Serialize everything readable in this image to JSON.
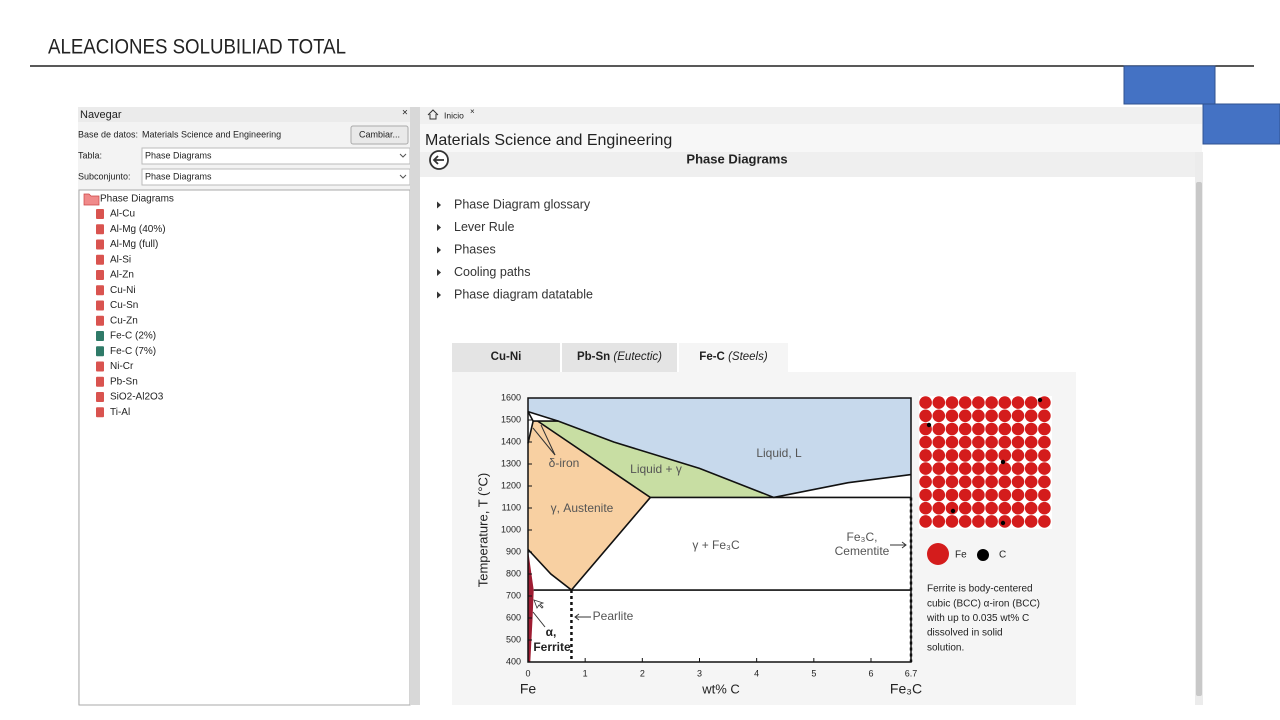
{
  "header": {
    "title": "ALEACIONES SOLUBILIAD TOTAL"
  },
  "navigator": {
    "title": "Navegar",
    "close": "×",
    "database_label": "Base de datos:",
    "database_value": "Materials Science and Engineering",
    "change_button": "Cambiar...",
    "table_label": "Tabla:",
    "table_value": "Phase Diagrams",
    "subset_label": "Subconjunto:",
    "subset_value": "Phase Diagrams",
    "tree": {
      "root": "Phase Diagrams",
      "items": [
        {
          "label": "Al-Cu",
          "icon": "#d9534f"
        },
        {
          "label": "Al-Mg (40%)",
          "icon": "#d9534f"
        },
        {
          "label": "Al-Mg (full)",
          "icon": "#d9534f"
        },
        {
          "label": "Al-Si",
          "icon": "#d9534f"
        },
        {
          "label": "Al-Zn",
          "icon": "#d9534f"
        },
        {
          "label": "Cu-Ni",
          "icon": "#d9534f"
        },
        {
          "label": "Cu-Sn",
          "icon": "#d9534f"
        },
        {
          "label": "Cu-Zn",
          "icon": "#d9534f"
        },
        {
          "label": "Fe-C (2%)",
          "icon": "#2f7a68"
        },
        {
          "label": "Fe-C (7%)",
          "icon": "#2f7a68"
        },
        {
          "label": "Ni-Cr",
          "icon": "#d9534f"
        },
        {
          "label": "Pb-Sn",
          "icon": "#d9534f"
        },
        {
          "label": "SiO2-Al2O3",
          "icon": "#d9534f"
        },
        {
          "label": "Ti-Al",
          "icon": "#d9534f"
        }
      ]
    }
  },
  "tab": {
    "label": "Inicio",
    "close": "×"
  },
  "content": {
    "title": "Materials Science and Engineering",
    "section": "Phase Diagrams",
    "links": [
      "Phase Diagram glossary",
      "Lever Rule",
      "Phases",
      "Cooling paths",
      "Phase diagram datatable"
    ],
    "tabs": [
      {
        "name": "Cu-Ni"
      },
      {
        "name": "Pb-Sn",
        "note": "(Eutectic)"
      },
      {
        "name": "Fe-C",
        "note": "(Steels)"
      }
    ]
  },
  "diagram": {
    "ylabel": "Temperature, T  (°C)",
    "xlabel": "wt% C",
    "x_start_label": "Fe",
    "x_end_label": "Fe₃C",
    "xlim": [
      0,
      6.7
    ],
    "ylim": [
      400,
      1600
    ],
    "xticks": [
      0,
      1,
      2,
      3,
      4,
      5,
      6,
      6.7
    ],
    "yticks": [
      400,
      500,
      600,
      700,
      800,
      900,
      1000,
      1100,
      1200,
      1300,
      1400,
      1500,
      1600
    ],
    "regions": [
      {
        "color": "#c7d9ec",
        "x": [
          0,
          6.7,
          6.7,
          5.6,
          4.3,
          3,
          1.5,
          0.53,
          0
        ],
        "y": [
          1600,
          1600,
          1252,
          1215,
          1148,
          1280,
          1400,
          1495,
          1538
        ]
      },
      {
        "color": "#c8dea3",
        "x": [
          0.53,
          1.5,
          3,
          4.3,
          2.14,
          0.17
        ],
        "y": [
          1495,
          1400,
          1280,
          1148,
          1148,
          1495
        ]
      },
      {
        "color": "#f8d0a2",
        "x": [
          0.17,
          2.14,
          0.76,
          0.4,
          0,
          0,
          0.09
        ],
        "y": [
          1495,
          1148,
          727,
          800,
          912,
          1394,
          1495
        ]
      },
      {
        "color": "#9e1c32",
        "x": [
          0,
          0.06,
          0.1,
          0.08,
          0.04,
          0
        ],
        "y": [
          912,
          800,
          727,
          600,
          400,
          400
        ]
      }
    ],
    "lines": [
      {
        "dashed": false,
        "x": [
          0,
          0.53,
          1.5,
          3,
          4.3,
          5.6,
          6.7
        ],
        "y": [
          1538,
          1495,
          1400,
          1280,
          1148,
          1215,
          1252
        ]
      },
      {
        "dashed": false,
        "x": [
          0,
          0.09,
          0.53
        ],
        "y": [
          1538,
          1495,
          1495
        ]
      },
      {
        "dashed": false,
        "x": [
          0,
          0.09
        ],
        "y": [
          1394,
          1495
        ]
      },
      {
        "dashed": false,
        "x": [
          0.17,
          2.14,
          6.7
        ],
        "y": [
          1495,
          1148,
          1148
        ]
      },
      {
        "dashed": false,
        "x": [
          2.14,
          0.76,
          0.4,
          0
        ],
        "y": [
          1148,
          727,
          800,
          912
        ]
      },
      {
        "dashed": false,
        "x": [
          0.1,
          6.7
        ],
        "y": [
          727,
          727
        ]
      },
      {
        "dashed": true,
        "x": [
          0.76,
          0.76
        ],
        "y": [
          727,
          400
        ]
      },
      {
        "dashed": true,
        "x": [
          6.7,
          6.7
        ],
        "y": [
          1148,
          400
        ]
      }
    ],
    "region_labels": {
      "liquid": "Liquid, L",
      "liquid_gamma": "Liquid + γ",
      "delta": "δ-iron",
      "austenite": "γ, Austenite",
      "gamma_cementite": "γ + Fe₃C",
      "cementite_1": "Fe₃C,",
      "cementite_2": "Cementite",
      "pearlite": "Pearlite",
      "alpha": "α,",
      "ferrite": "Ferrite"
    },
    "legend": {
      "fe": "Fe",
      "c": "C"
    },
    "description": [
      "Ferrite is body-centered",
      "cubic (BCC) α-iron (BCC)",
      "with up to 0.035 wt% C",
      "dissolved in solid",
      "solution."
    ]
  }
}
